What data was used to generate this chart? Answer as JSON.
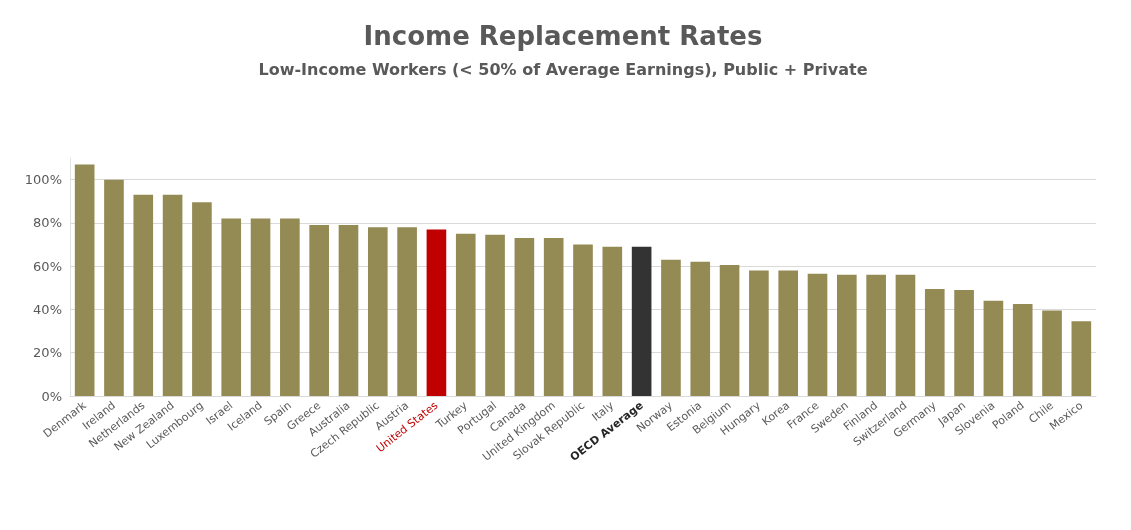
{
  "chart_data": {
    "type": "bar",
    "title": "Income Replacement Rates",
    "subtitle": "Low-Income Workers (< 50% of Average Earnings), Public + Private",
    "categories": [
      "Denmark",
      "Ireland",
      "Netherlands",
      "New Zealand",
      "Luxembourg",
      "Israel",
      "Iceland",
      "Spain",
      "Greece",
      "Australia",
      "Czech Republic",
      "Austria",
      "United States",
      "Turkey",
      "Portugal",
      "Canada",
      "United Kingdom",
      "Slovak Republic",
      "Italy",
      "OECD Average",
      "Norway",
      "Estonia",
      "Belgium",
      "Hungary",
      "Korea",
      "France",
      "Sweden",
      "Finland",
      "Switzerland",
      "Germany",
      "Japan",
      "Slovenia",
      "Poland",
      "Chile",
      "Mexico"
    ],
    "values": [
      107,
      100,
      93,
      93,
      89.5,
      82,
      82,
      82,
      79,
      79,
      78,
      78,
      77,
      75,
      74.5,
      73,
      73,
      70,
      69,
      69,
      63,
      62,
      60.5,
      58,
      58,
      56.5,
      56,
      56,
      56,
      49.5,
      49,
      44,
      42.5,
      39.5,
      34.5
    ],
    "color": "#948a54",
    "colors": [
      "#948a54",
      "#948a54",
      "#948a54",
      "#948a54",
      "#948a54",
      "#948a54",
      "#948a54",
      "#948a54",
      "#948a54",
      "#948a54",
      "#948a54",
      "#948a54",
      "#c00000",
      "#948a54",
      "#948a54",
      "#948a54",
      "#948a54",
      "#948a54",
      "#948a54",
      "#333333",
      "#948a54",
      "#948a54",
      "#948a54",
      "#948a54",
      "#948a54",
      "#948a54",
      "#948a54",
      "#948a54",
      "#948a54",
      "#948a54",
      "#948a54",
      "#948a54",
      "#948a54",
      "#948a54",
      "#948a54"
    ],
    "ylim": [
      0,
      110
    ],
    "yticks": [
      {
        "value": 0,
        "label": "0%"
      },
      {
        "value": 20,
        "label": "20%"
      },
      {
        "value": 40,
        "label": "40%"
      },
      {
        "value": 60,
        "label": "60%"
      },
      {
        "value": 80,
        "label": "80%"
      },
      {
        "value": 100,
        "label": "100%"
      }
    ],
    "grid": "y"
  }
}
